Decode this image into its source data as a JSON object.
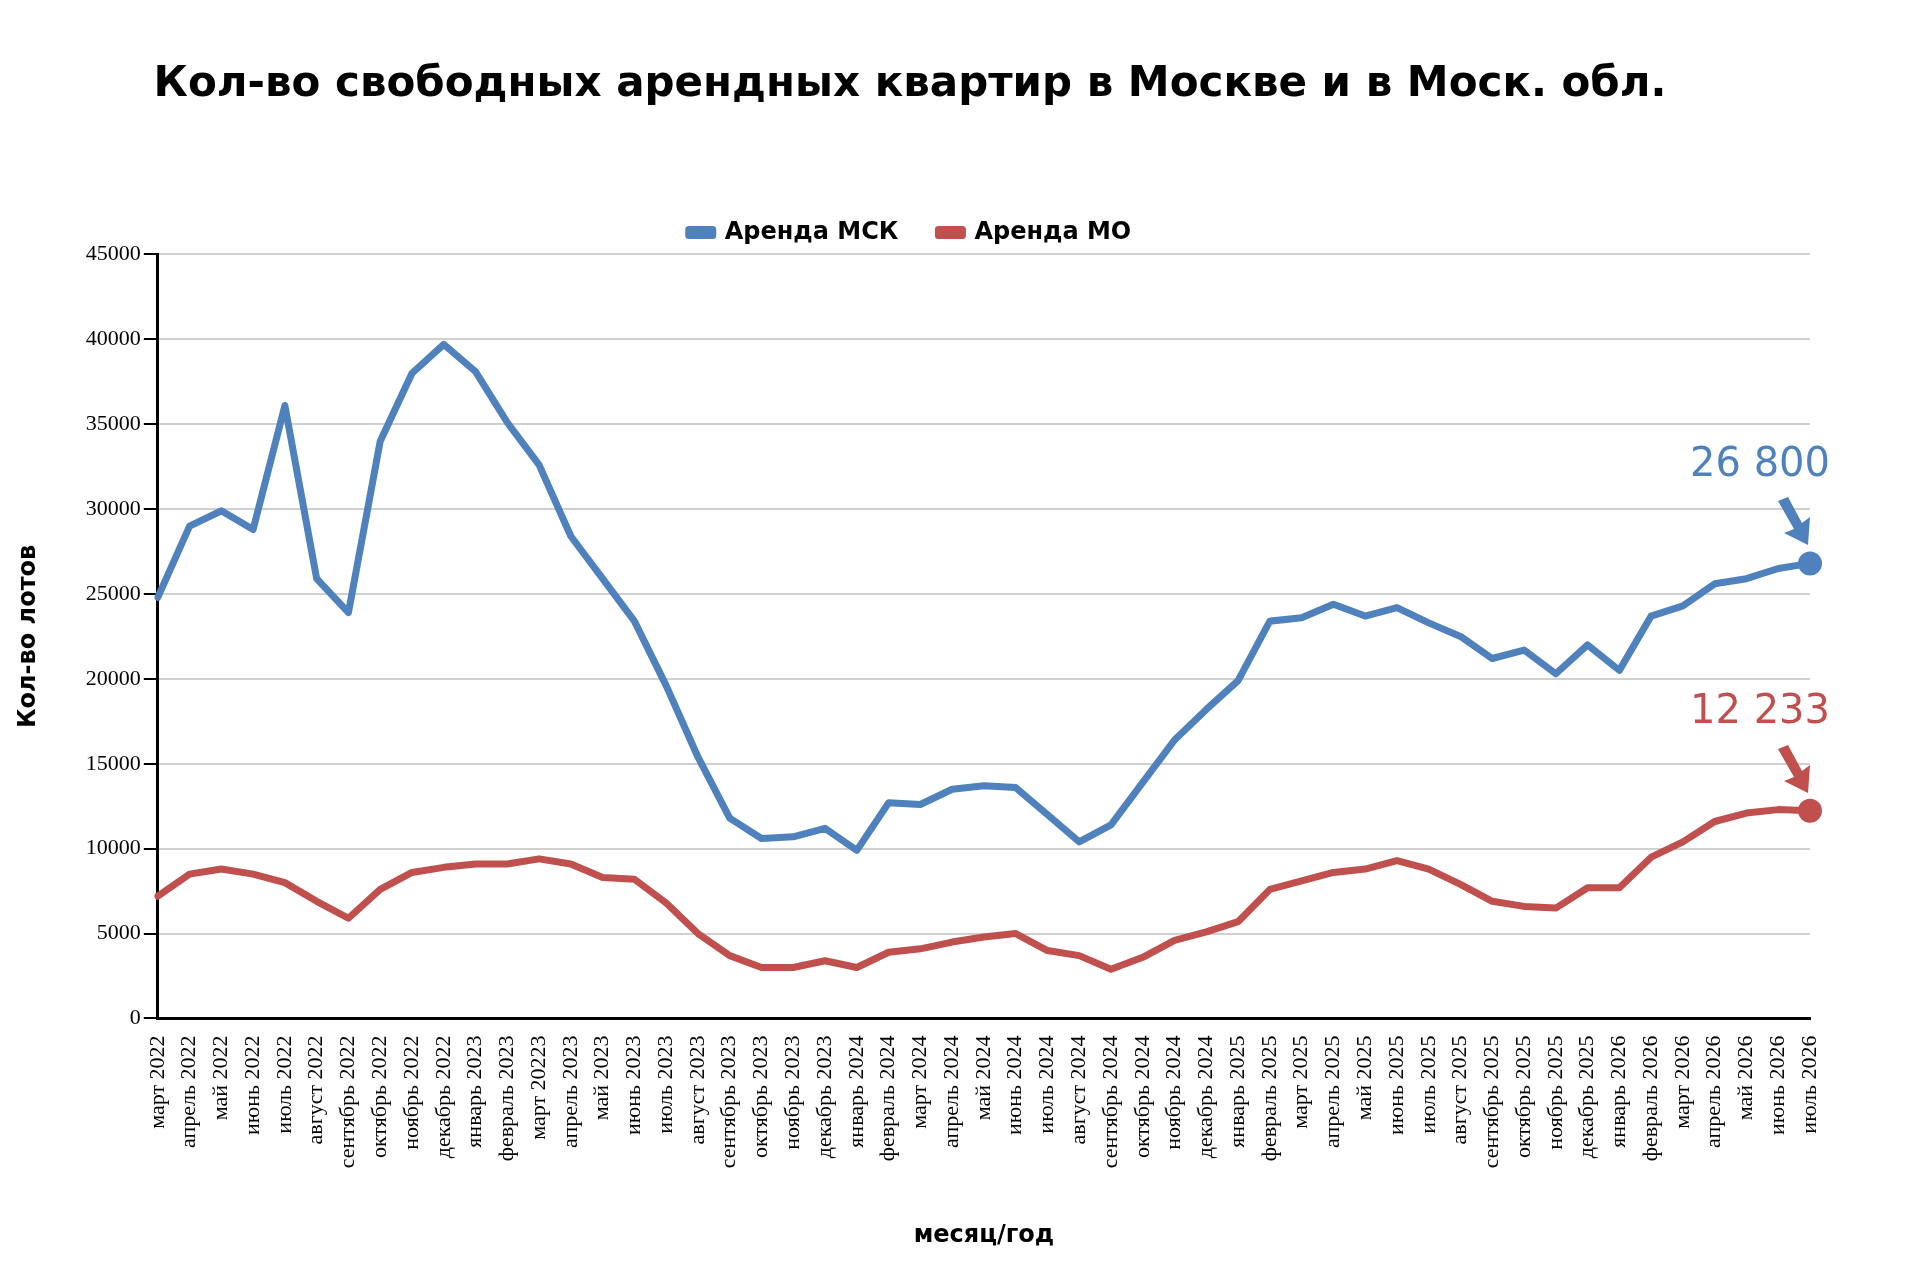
{
  "chart_data": {
    "type": "line",
    "title": "Кол-во свободных арендных квартир в Москве и в Моск. обл.",
    "xlabel": "месяц/год",
    "ylabel": "Кол-во лотов",
    "categories": [
      "март 2022",
      "апрель 2022",
      "май 2022",
      "июнь 2022",
      "июль 2022",
      "август 2022",
      "сентябрь 2022",
      "октябрь 2022",
      "ноябрь 2022",
      "декабрь 2022",
      "январь 2023",
      "февраль 2023",
      "март 20223",
      "апрель 2023",
      "май 2023",
      "июнь 2023",
      "июль 2023",
      "август 2023",
      "сентябрь 2023",
      "октябрь 2023",
      "ноябрь 2023",
      "декабрь 2023",
      "январь 2024",
      "февраль 2024",
      "март 2024",
      "апрель 2024",
      "май 2024",
      "июнь 2024",
      "июль 2024",
      "август 2024",
      "сентябрь 2024",
      "октябрь 2024",
      "ноябрь 2024",
      "декабрь 2024",
      "январь 2025",
      "февраль 2025",
      "март 2025",
      "апрель 2025",
      "май 2025",
      "июнь 2025",
      "июль 2025",
      "август 2025",
      "сентябрь 2025",
      "октябрь 2025",
      "ноябрь 2025",
      "декабрь 2025",
      "январь 2026",
      "февраль 2026",
      "март 2026",
      "апрель 2026",
      "май 2026",
      "июнь 2026",
      "июль 2026"
    ],
    "series": [
      {
        "name": "Аренда МСК",
        "color": "#4f81bd",
        "values": [
          24800,
          29000,
          29900,
          28800,
          36100,
          25900,
          23900,
          34000,
          38000,
          39700,
          38100,
          35100,
          32600,
          28400,
          25900,
          23400,
          19600,
          15400,
          11800,
          10600,
          10700,
          11200,
          9900,
          12700,
          12600,
          13500,
          13700,
          13600,
          12000,
          10400,
          11400,
          13900,
          16400,
          18200,
          19900,
          23400,
          23600,
          24400,
          23700,
          24200,
          23300,
          22500,
          21200,
          21700,
          20300,
          22000,
          20500,
          23700,
          24300,
          25600,
          25900,
          26500,
          26800
        ]
      },
      {
        "name": "Аренда МО",
        "color": "#c0504d",
        "values": [
          7200,
          8500,
          8800,
          8500,
          8000,
          6900,
          5900,
          7600,
          8600,
          8900,
          9100,
          9100,
          9400,
          9100,
          8300,
          8200,
          6800,
          5000,
          3700,
          3000,
          3000,
          3400,
          3000,
          3900,
          4100,
          4500,
          4800,
          5000,
          4000,
          3700,
          2900,
          3600,
          4600,
          5100,
          5700,
          7600,
          8100,
          8600,
          8800,
          9300,
          8800,
          7900,
          6900,
          6600,
          6500,
          7700,
          7700,
          9500,
          10400,
          11600,
          12100,
          12300,
          12233
        ]
      }
    ],
    "ylim": [
      0,
      45000
    ],
    "yticks": [
      0,
      5000,
      10000,
      15000,
      20000,
      25000,
      30000,
      35000,
      40000,
      45000
    ],
    "grid": "y",
    "legend": "top",
    "marker": "none",
    "line_style": "solid",
    "annotations": [
      {
        "text": "26 800",
        "x": "июль 2026",
        "y": 26800
      },
      {
        "text": "12 233",
        "x": "июль 2026",
        "y": 12233
      }
    ]
  }
}
